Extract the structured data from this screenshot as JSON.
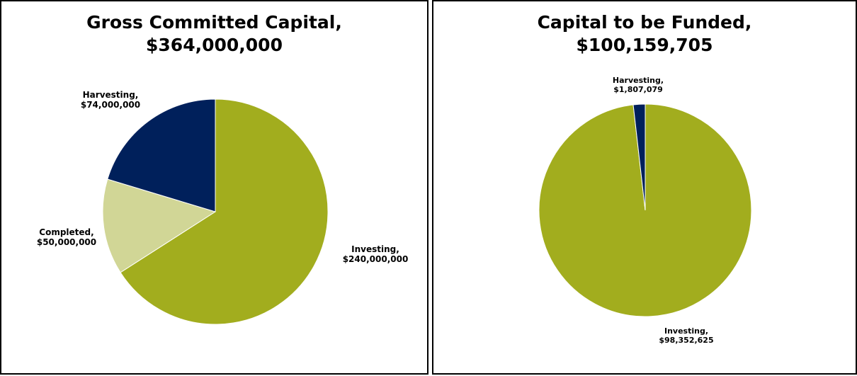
{
  "chart_data": [
    {
      "type": "pie",
      "title": [
        "Gross Committed Capital,",
        "$364,000,000"
      ],
      "slices": [
        {
          "label": [
            "Investing,",
            "$240,000,000"
          ],
          "value": 240000000,
          "color": "#a2ad1e"
        },
        {
          "label": [
            "Completed,",
            "$50,000,000"
          ],
          "value": 50000000,
          "color": "#d1d696"
        },
        {
          "label": [
            "Harvesting,",
            "$74,000,000"
          ],
          "value": 74000000,
          "color": "#00205b"
        }
      ]
    },
    {
      "type": "pie",
      "title": [
        "Capital to be Funded,",
        "$100,159,705"
      ],
      "slices": [
        {
          "label": [
            "Investing,",
            "$98,352,625"
          ],
          "value": 98352625,
          "color": "#a2ad1e"
        },
        {
          "label": [
            "Harvesting,",
            "$1,807,079"
          ],
          "value": 1807079,
          "color": "#00205b"
        }
      ]
    }
  ]
}
